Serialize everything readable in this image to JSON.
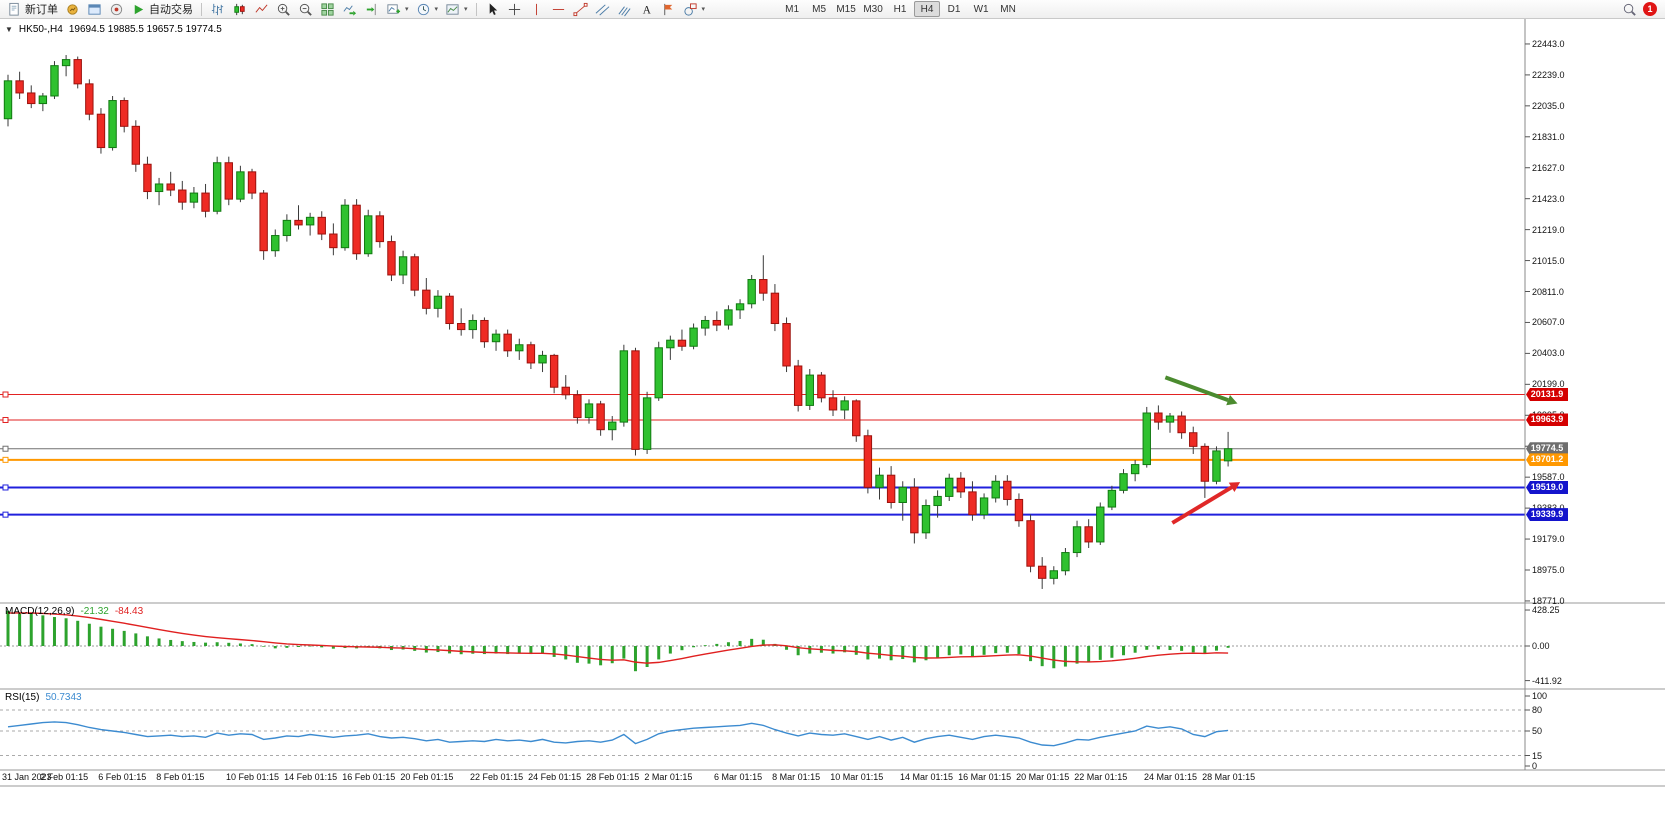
{
  "toolbar": {
    "new_order_label": "新订单",
    "autotrade_label": "自动交易",
    "timeframes": [
      "M1",
      "M5",
      "M15",
      "M30",
      "H1",
      "H4",
      "D1",
      "W1",
      "MN"
    ],
    "active_timeframe": "H4",
    "notification_count": "1"
  },
  "chart_header": {
    "collapse_icon": "▼",
    "symbol_label": "HK50-,H4",
    "ohlc": "19694.5 19885.5 19657.5 19774.5"
  },
  "price_scale": {
    "badges": [
      {
        "value": "20131.9",
        "price": 20131.9,
        "color": "#d40000"
      },
      {
        "value": "19963.9",
        "price": 19963.9,
        "color": "#d40000"
      },
      {
        "value": "19774.5",
        "price": 19774.5,
        "color": "#6e6e6e"
      },
      {
        "value": "19701.2",
        "price": 19701.2,
        "color": "#ff9800"
      },
      {
        "value": "19519.0",
        "price": 19519.0,
        "color": "#1414cc"
      },
      {
        "value": "19339.9",
        "price": 19339.9,
        "color": "#1414cc"
      }
    ]
  },
  "chart_data": {
    "type": "candlestick",
    "symbol": "HK50-",
    "timeframe": "H4",
    "last_ohlc": {
      "open": 19694.5,
      "high": 19885.5,
      "low": 19657.5,
      "close": 19774.5
    },
    "colors": {
      "up": "#2fc12f",
      "down": "#ee2b24",
      "up_border": "#117a11",
      "down_border": "#9c120d"
    },
    "y_axis": {
      "min": 18764,
      "max": 22568,
      "ticks": [
        22443,
        22239,
        22035,
        21831,
        21627,
        21423,
        21219,
        21015,
        20811,
        20607,
        20403,
        20199,
        19995,
        19791,
        19587,
        19383,
        19179,
        18975,
        18771
      ]
    },
    "x_labels": [
      {
        "i": 0,
        "label": "31 Jan 2023"
      },
      {
        "i": 5,
        "label": "2 Feb 01:15"
      },
      {
        "i": 10,
        "label": "6 Feb 01:15"
      },
      {
        "i": 15,
        "label": "8 Feb 01:15"
      },
      {
        "i": 21,
        "label": "10 Feb 01:15"
      },
      {
        "i": 26,
        "label": "14 Feb 01:15"
      },
      {
        "i": 31,
        "label": "16 Feb 01:15"
      },
      {
        "i": 36,
        "label": "20 Feb 01:15"
      },
      {
        "i": 42,
        "label": "22 Feb 01:15"
      },
      {
        "i": 47,
        "label": "24 Feb 01:15"
      },
      {
        "i": 52,
        "label": "28 Feb 01:15"
      },
      {
        "i": 57,
        "label": "2 Mar 01:15"
      },
      {
        "i": 63,
        "label": "6 Mar 01:15"
      },
      {
        "i": 68,
        "label": "8 Mar 01:15"
      },
      {
        "i": 73,
        "label": "10 Mar 01:15"
      },
      {
        "i": 79,
        "label": "14 Mar 01:15"
      },
      {
        "i": 84,
        "label": "16 Mar 01:15"
      },
      {
        "i": 89,
        "label": "20 Mar 01:15"
      },
      {
        "i": 94,
        "label": "22 Mar 01:15"
      },
      {
        "i": 100,
        "label": "24 Mar 01:15"
      },
      {
        "i": 105,
        "label": "28 Mar 01:15"
      }
    ],
    "hlines": [
      {
        "price": 20131.9,
        "color": "#e22222",
        "width": 1
      },
      {
        "price": 19963.9,
        "color": "#e22222",
        "width": 1
      },
      {
        "price": 19774.5,
        "color": "#707070",
        "width": 1
      },
      {
        "price": 19701.2,
        "color": "#ff9800",
        "width": 2
      },
      {
        "price": 19519.0,
        "color": "#2020dd",
        "width": 2
      },
      {
        "price": 19339.9,
        "color": "#2020dd",
        "width": 2
      }
    ],
    "arrows": [
      {
        "name": "trend-arrow-down",
        "from": [
          99.6,
          20245
        ],
        "to": [
          105.0,
          20095
        ],
        "color": "#4b8b2f"
      },
      {
        "name": "trend-arrow-up",
        "from": [
          100.2,
          19285
        ],
        "to": [
          105.3,
          19520
        ],
        "color": "#e02828"
      }
    ],
    "candles": [
      [
        21950,
        22240,
        21900,
        22200
      ],
      [
        22200,
        22260,
        22080,
        22120
      ],
      [
        22120,
        22170,
        22020,
        22050
      ],
      [
        22050,
        22120,
        22000,
        22100
      ],
      [
        22100,
        22330,
        22080,
        22300
      ],
      [
        22300,
        22370,
        22230,
        22340
      ],
      [
        22340,
        22360,
        22150,
        22180
      ],
      [
        22180,
        22210,
        21940,
        21980
      ],
      [
        21980,
        22020,
        21720,
        21760
      ],
      [
        21760,
        22100,
        21740,
        22070
      ],
      [
        22070,
        22090,
        21860,
        21900
      ],
      [
        21900,
        21940,
        21600,
        21650
      ],
      [
        21650,
        21700,
        21420,
        21470
      ],
      [
        21470,
        21560,
        21380,
        21520
      ],
      [
        21520,
        21600,
        21440,
        21480
      ],
      [
        21480,
        21540,
        21350,
        21400
      ],
      [
        21400,
        21500,
        21360,
        21460
      ],
      [
        21460,
        21520,
        21300,
        21340
      ],
      [
        21340,
        21700,
        21320,
        21660
      ],
      [
        21660,
        21700,
        21380,
        21420
      ],
      [
        21420,
        21640,
        21400,
        21600
      ],
      [
        21600,
        21620,
        21420,
        21460
      ],
      [
        21460,
        21480,
        21020,
        21080
      ],
      [
        21080,
        21220,
        21040,
        21180
      ],
      [
        21180,
        21320,
        21140,
        21280
      ],
      [
        21280,
        21380,
        21220,
        21250
      ],
      [
        21250,
        21330,
        21180,
        21300
      ],
      [
        21300,
        21340,
        21150,
        21190
      ],
      [
        21190,
        21260,
        21050,
        21100
      ],
      [
        21100,
        21420,
        21080,
        21380
      ],
      [
        21380,
        21420,
        21020,
        21060
      ],
      [
        21060,
        21350,
        21040,
        21310
      ],
      [
        21310,
        21340,
        21100,
        21140
      ],
      [
        21140,
        21180,
        20880,
        20920
      ],
      [
        20920,
        21080,
        20860,
        21040
      ],
      [
        21040,
        21060,
        20780,
        20820
      ],
      [
        20820,
        20900,
        20660,
        20700
      ],
      [
        20700,
        20820,
        20640,
        20780
      ],
      [
        20780,
        20800,
        20560,
        20600
      ],
      [
        20600,
        20700,
        20520,
        20560
      ],
      [
        20560,
        20660,
        20500,
        20620
      ],
      [
        20620,
        20640,
        20440,
        20480
      ],
      [
        20480,
        20560,
        20420,
        20530
      ],
      [
        20530,
        20560,
        20380,
        20420
      ],
      [
        20420,
        20500,
        20360,
        20460
      ],
      [
        20460,
        20480,
        20300,
        20340
      ],
      [
        20340,
        20420,
        20280,
        20390
      ],
      [
        20390,
        20400,
        20140,
        20180
      ],
      [
        20180,
        20260,
        20100,
        20130
      ],
      [
        20130,
        20160,
        19940,
        19980
      ],
      [
        19980,
        20100,
        19940,
        20070
      ],
      [
        20070,
        20090,
        19860,
        19900
      ],
      [
        19900,
        19990,
        19830,
        19950
      ],
      [
        19950,
        20460,
        19920,
        20420
      ],
      [
        20420,
        20440,
        19730,
        19770
      ],
      [
        19770,
        20150,
        19740,
        20110
      ],
      [
        20110,
        20480,
        20090,
        20440
      ],
      [
        20440,
        20520,
        20360,
        20490
      ],
      [
        20490,
        20560,
        20420,
        20450
      ],
      [
        20450,
        20600,
        20430,
        20570
      ],
      [
        20570,
        20650,
        20520,
        20620
      ],
      [
        20620,
        20680,
        20550,
        20590
      ],
      [
        20590,
        20720,
        20560,
        20690
      ],
      [
        20690,
        20760,
        20630,
        20730
      ],
      [
        20730,
        20920,
        20700,
        20890
      ],
      [
        20890,
        21050,
        20750,
        20800
      ],
      [
        20800,
        20860,
        20550,
        20600
      ],
      [
        20600,
        20640,
        20280,
        20320
      ],
      [
        20320,
        20360,
        20020,
        20060
      ],
      [
        20060,
        20300,
        20030,
        20260
      ],
      [
        20260,
        20280,
        20080,
        20110
      ],
      [
        20110,
        20160,
        19990,
        20030
      ],
      [
        20030,
        20120,
        19970,
        20090
      ],
      [
        20090,
        20100,
        19820,
        19860
      ],
      [
        19860,
        19900,
        19480,
        19520
      ],
      [
        19520,
        19650,
        19440,
        19600
      ],
      [
        19600,
        19660,
        19380,
        19420
      ],
      [
        19420,
        19560,
        19300,
        19520
      ],
      [
        19520,
        19580,
        19150,
        19220
      ],
      [
        19220,
        19440,
        19180,
        19400
      ],
      [
        19400,
        19500,
        19320,
        19460
      ],
      [
        19460,
        19610,
        19430,
        19580
      ],
      [
        19580,
        19620,
        19450,
        19490
      ],
      [
        19490,
        19560,
        19300,
        19340
      ],
      [
        19340,
        19480,
        19310,
        19450
      ],
      [
        19450,
        19600,
        19420,
        19560
      ],
      [
        19560,
        19600,
        19400,
        19440
      ],
      [
        19440,
        19480,
        19260,
        19300
      ],
      [
        19300,
        19340,
        18960,
        19000
      ],
      [
        19000,
        19060,
        18850,
        18920
      ],
      [
        18920,
        19000,
        18880,
        18970
      ],
      [
        18970,
        19120,
        18940,
        19090
      ],
      [
        19090,
        19300,
        19060,
        19260
      ],
      [
        19260,
        19310,
        19120,
        19160
      ],
      [
        19160,
        19420,
        19140,
        19390
      ],
      [
        19390,
        19530,
        19370,
        19500
      ],
      [
        19500,
        19640,
        19480,
        19610
      ],
      [
        19610,
        19700,
        19560,
        19670
      ],
      [
        19670,
        20050,
        19650,
        20010
      ],
      [
        20010,
        20060,
        19900,
        19950
      ],
      [
        19950,
        20010,
        19880,
        19990
      ],
      [
        19990,
        20020,
        19840,
        19880
      ],
      [
        19880,
        19920,
        19740,
        19790
      ],
      [
        19790,
        19810,
        19450,
        19560
      ],
      [
        19560,
        19790,
        19540,
        19760
      ],
      [
        19694.5,
        19885.5,
        19657.5,
        19774.5
      ]
    ],
    "macd": {
      "label": "MACD(12,26,9)",
      "value_main": "-21.32",
      "value_signal": "-84.43",
      "scale": [
        {
          "label": "428.25",
          "value": 428.25
        },
        {
          "label": "0.00",
          "value": 0
        },
        {
          "label": "-411.92",
          "value": -411.92
        }
      ],
      "hist": [
        420,
        400,
        385,
        365,
        345,
        330,
        300,
        265,
        230,
        205,
        180,
        150,
        115,
        90,
        72,
        58,
        48,
        40,
        45,
        38,
        30,
        22,
        -8,
        -28,
        -22,
        -12,
        -6,
        -16,
        -32,
        -24,
        -28,
        -18,
        -28,
        -48,
        -42,
        -58,
        -78,
        -72,
        -88,
        -98,
        -92,
        -96,
        -90,
        -96,
        -90,
        -96,
        -86,
        -130,
        -160,
        -200,
        -210,
        -230,
        -205,
        -150,
        -300,
        -250,
        -160,
        -90,
        -50,
        -15,
        10,
        25,
        45,
        60,
        85,
        75,
        25,
        -45,
        -110,
        -90,
        -80,
        -90,
        -75,
        -105,
        -160,
        -150,
        -170,
        -155,
        -195,
        -170,
        -140,
        -110,
        -100,
        -120,
        -105,
        -85,
        -80,
        -95,
        -180,
        -240,
        -265,
        -245,
        -210,
        -195,
        -165,
        -140,
        -110,
        -80,
        -45,
        -40,
        -48,
        -58,
        -75,
        -95,
        -55,
        -21.32
      ],
      "signal": [
        392,
        394,
        393,
        388,
        380,
        371,
        357,
        339,
        317,
        294,
        271,
        246,
        221,
        196,
        172,
        150,
        130,
        113,
        99,
        87,
        76,
        65,
        51,
        36,
        24,
        17,
        12,
        7,
        -1,
        -6,
        -10,
        -12,
        -15,
        -21,
        -25,
        -32,
        -41,
        -47,
        -55,
        -64,
        -70,
        -76,
        -80,
        -83,
        -85,
        -87,
        -87,
        -95,
        -108,
        -126,
        -143,
        -160,
        -169,
        -165,
        -192,
        -204,
        -195,
        -174,
        -149,
        -122,
        -96,
        -72,
        -49,
        -27,
        -5,
        11,
        14,
        2,
        -20,
        -34,
        -43,
        -52,
        -57,
        -67,
        -85,
        -98,
        -112,
        -121,
        -136,
        -143,
        -142,
        -136,
        -129,
        -127,
        -122,
        -115,
        -108,
        -105,
        -120,
        -144,
        -168,
        -183,
        -188,
        -190,
        -185,
        -176,
        -163,
        -146,
        -126,
        -109,
        -97,
        -89,
        -86,
        -88,
        -81,
        -84.43
      ]
    },
    "rsi": {
      "label": "RSI(15)",
      "value": "50.7343",
      "levels": [
        80,
        50,
        15
      ],
      "scale": [
        {
          "label": "100",
          "value": 100
        },
        {
          "label": "80",
          "value": 80
        },
        {
          "label": "50",
          "value": 50
        },
        {
          "label": "15",
          "value": 15
        },
        {
          "label": "0",
          "value": 0
        }
      ],
      "values": [
        56,
        58,
        60,
        62,
        63,
        62,
        59,
        55,
        52,
        50,
        48,
        45,
        42,
        43,
        44,
        42,
        43,
        41,
        47,
        44,
        46,
        45,
        38,
        40,
        43,
        42,
        45,
        43,
        41,
        43,
        44,
        46,
        42,
        40,
        41,
        39,
        36,
        38,
        34,
        35,
        36,
        35,
        38,
        36,
        37,
        35,
        38,
        34,
        33,
        35,
        36,
        34,
        37,
        45,
        32,
        38,
        46,
        50,
        52,
        54,
        55,
        56,
        57,
        58,
        61,
        58,
        52,
        47,
        43,
        47,
        45,
        44,
        46,
        42,
        38,
        42,
        37,
        41,
        34,
        39,
        42,
        44,
        41,
        38,
        42,
        44,
        42,
        40,
        34,
        30,
        29,
        33,
        38,
        37,
        41,
        44,
        47,
        50,
        57,
        54,
        56,
        53,
        45,
        42,
        49,
        50.7343
      ]
    }
  }
}
